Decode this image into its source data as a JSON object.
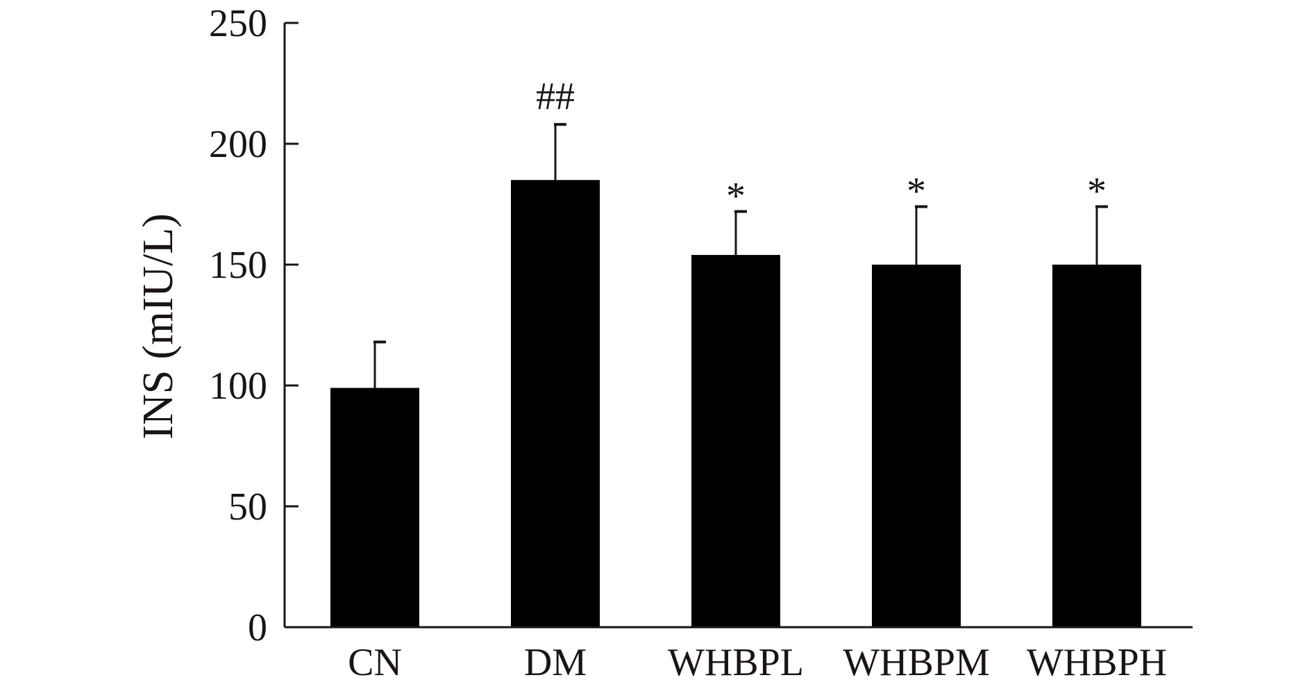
{
  "chart_data": {
    "type": "bar",
    "categories": [
      "CN",
      "DM",
      "WHBPL",
      "WHBPM",
      "WHBPH"
    ],
    "values": [
      99,
      185,
      154,
      150,
      150
    ],
    "error_upper": [
      118,
      208,
      172,
      174,
      174
    ],
    "annotations": [
      "",
      "##",
      "*",
      "*",
      "*"
    ],
    "title": "",
    "xlabel": "",
    "ylabel": "INS (mIU/L)",
    "ylim": [
      0,
      250
    ],
    "yticks": [
      0,
      50,
      100,
      150,
      200,
      250
    ],
    "grid": false,
    "legend": "none",
    "bar_color": "#000000",
    "axis_color": "#1a1416"
  }
}
